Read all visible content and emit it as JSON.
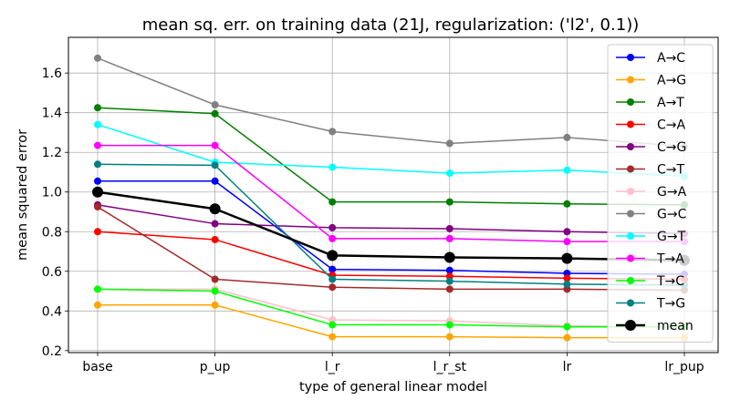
{
  "chart_data": {
    "type": "line",
    "title": "mean sq. err. on training data (21J, regularization: ('l2', 0.1))",
    "xlabel": "type of general linear model",
    "ylabel": "mean squared error",
    "categories": [
      "base",
      "p_up",
      "l_r",
      "l_r_st",
      "lr",
      "lr_pup"
    ],
    "ylim": [
      0.19,
      1.78
    ],
    "yticks": [
      0.2,
      0.4,
      0.6,
      0.8,
      1.0,
      1.2,
      1.4,
      1.6
    ],
    "ytick_labels": [
      "0.2",
      "0.4",
      "0.6",
      "0.8",
      "1.0",
      "1.2",
      "1.4",
      "1.6"
    ],
    "grid": true,
    "legend_position": "top-right",
    "series": [
      {
        "name": "A→C",
        "color": "#0000ff",
        "values": [
          1.055,
          1.055,
          0.61,
          0.605,
          0.59,
          0.585
        ]
      },
      {
        "name": "A→G",
        "color": "#ffa500",
        "values": [
          0.43,
          0.43,
          0.27,
          0.27,
          0.265,
          0.265
        ]
      },
      {
        "name": "A→T",
        "color": "#008000",
        "values": [
          1.425,
          1.395,
          0.95,
          0.95,
          0.94,
          0.935
        ]
      },
      {
        "name": "C→A",
        "color": "#ff0000",
        "values": [
          0.8,
          0.76,
          0.58,
          0.575,
          0.565,
          0.56
        ]
      },
      {
        "name": "C→G",
        "color": "#800080",
        "values": [
          0.935,
          0.84,
          0.82,
          0.815,
          0.8,
          0.79
        ]
      },
      {
        "name": "C→T",
        "color": "#a52a2a",
        "values": [
          0.925,
          0.56,
          0.52,
          0.51,
          0.51,
          0.505
        ]
      },
      {
        "name": "G→A",
        "color": "#ffc0cb",
        "values": [
          0.51,
          0.51,
          0.355,
          0.35,
          0.325,
          0.32
        ]
      },
      {
        "name": "G→C",
        "color": "#808080",
        "values": [
          1.675,
          1.44,
          1.305,
          1.245,
          1.275,
          1.23
        ]
      },
      {
        "name": "G→T",
        "color": "#00ffff",
        "values": [
          1.34,
          1.15,
          1.125,
          1.095,
          1.11,
          1.08
        ]
      },
      {
        "name": "T→A",
        "color": "#ff00ff",
        "values": [
          1.235,
          1.235,
          0.765,
          0.765,
          0.75,
          0.75
        ]
      },
      {
        "name": "T→C",
        "color": "#00ff00",
        "values": [
          0.51,
          0.5,
          0.33,
          0.33,
          0.32,
          0.32
        ]
      },
      {
        "name": "T→G",
        "color": "#008080",
        "values": [
          1.14,
          1.135,
          0.56,
          0.55,
          0.535,
          0.53
        ]
      },
      {
        "name": "mean",
        "color": "#000000",
        "values": [
          1.0,
          0.915,
          0.68,
          0.67,
          0.665,
          0.655
        ],
        "emphasis": true
      }
    ]
  }
}
